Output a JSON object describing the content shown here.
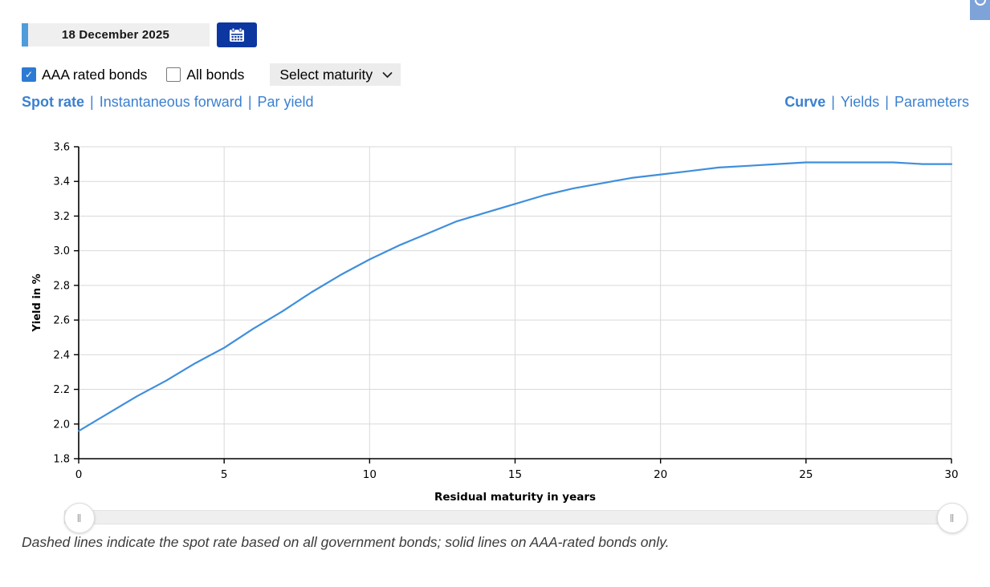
{
  "colors": {
    "navy": "#0d37a0",
    "link": "#3b80d1",
    "stripe": "#4f9cdb",
    "check": "#2d7ad4",
    "corner": "#7ea3d9",
    "curve": "#3f8fdc",
    "grid": "#d9d9d9",
    "axis": "#000000"
  },
  "header": {
    "date_value": "18 December 2025"
  },
  "filters": {
    "aaa": {
      "label": "AAA rated bonds",
      "checked": true
    },
    "all": {
      "label": "All bonds",
      "checked": false
    },
    "maturity_select": {
      "value": "Select maturity"
    }
  },
  "series_tabs": [
    {
      "label": "Spot rate",
      "active": true
    },
    {
      "label": "Instantaneous forward",
      "active": false
    },
    {
      "label": "Par yield",
      "active": false
    }
  ],
  "view_tabs": [
    {
      "label": "Curve",
      "active": true
    },
    {
      "label": "Yields",
      "active": false
    },
    {
      "label": "Parameters",
      "active": false
    }
  ],
  "separator": "|",
  "chart_data": {
    "type": "line",
    "title": "",
    "xlabel": "Residual maturity in years",
    "ylabel": "Yield in %",
    "xlim": [
      0,
      30
    ],
    "ylim": [
      1.8,
      3.6
    ],
    "xticks": [
      0,
      5,
      10,
      15,
      20,
      25,
      30
    ],
    "yticks": [
      1.8,
      2.0,
      2.2,
      2.4,
      2.6,
      2.8,
      3.0,
      3.2,
      3.4,
      3.6
    ],
    "grid": true,
    "legend": "none",
    "series": [
      {
        "name": "AAA rated bonds spot rate",
        "style": "solid",
        "color": "#3f8fdc",
        "x": [
          0,
          1,
          2,
          3,
          4,
          5,
          6,
          7,
          8,
          9,
          10,
          11,
          12,
          13,
          14,
          15,
          16,
          17,
          18,
          19,
          20,
          21,
          22,
          23,
          24,
          25,
          26,
          27,
          28,
          29,
          30
        ],
        "y": [
          1.96,
          2.06,
          2.16,
          2.25,
          2.35,
          2.44,
          2.55,
          2.65,
          2.76,
          2.86,
          2.95,
          3.03,
          3.1,
          3.17,
          3.22,
          3.27,
          3.32,
          3.36,
          3.39,
          3.42,
          3.44,
          3.46,
          3.48,
          3.49,
          3.5,
          3.51,
          3.51,
          3.51,
          3.51,
          3.5,
          3.5
        ]
      }
    ]
  },
  "footnote": "Dashed lines indicate the spot rate based on all government bonds; solid lines on AAA-rated bonds only."
}
